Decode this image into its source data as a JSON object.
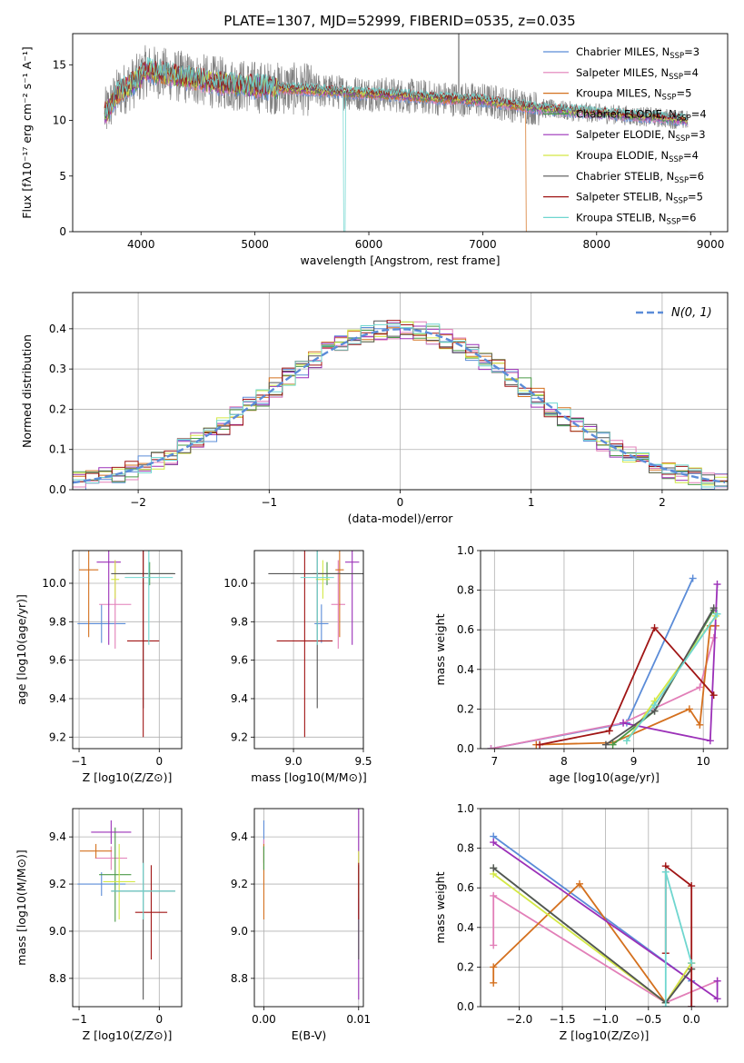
{
  "figure_title": "PLATE=1307, MJD=52999, FIBERID=0535, z=0.035",
  "colors": {
    "series": [
      "#5b8cd8",
      "#e27fb8",
      "#d4701e",
      "#4b9a48",
      "#9b30b8",
      "#d4e845",
      "#555555",
      "#a01515",
      "#6fd6cf"
    ]
  },
  "series_labels": [
    {
      "base": "Chabrier MILES, N",
      "sub": "SSP",
      "tail": "=3"
    },
    {
      "base": "Salpeter MILES, N",
      "sub": "SSP",
      "tail": "=4"
    },
    {
      "base": "Kroupa MILES, N",
      "sub": "SSP",
      "tail": "=5"
    },
    {
      "base": "Chabrier ELODIE, N",
      "sub": "SSP",
      "tail": "=4"
    },
    {
      "base": "Salpeter ELODIE, N",
      "sub": "SSP",
      "tail": "=3"
    },
    {
      "base": "Kroupa ELODIE, N",
      "sub": "SSP",
      "tail": "=4"
    },
    {
      "base": "Chabrier STELIB, N",
      "sub": "SSP",
      "tail": "=6"
    },
    {
      "base": "Salpeter STELIB, N",
      "sub": "SSP",
      "tail": "=5"
    },
    {
      "base": "Kroupa STELIB, N",
      "sub": "SSP",
      "tail": "=6"
    }
  ],
  "chart_data": [
    {
      "id": "spectrum",
      "type": "line",
      "xlabel": "wavelength [Angstrom, rest frame]",
      "ylabel": "Flux [fλ10⁻¹⁷ erg cm⁻² s⁻¹ A⁻¹]",
      "xlim": [
        3400,
        9150
      ],
      "ylim": [
        0,
        17.8
      ],
      "xticks": [
        4000,
        5000,
        6000,
        7000,
        8000,
        9000
      ],
      "yticks": [
        0,
        5,
        10,
        15
      ],
      "data_color": "#808080",
      "data_x_range": [
        3680,
        8800
      ],
      "legend_position": "top-right",
      "model_anchor_x": [
        3680,
        3800,
        3950,
        4050,
        4300,
        4600,
        5000,
        5400,
        5800,
        6200,
        6600,
        7000,
        7400,
        7800,
        8200,
        8600,
        8800
      ],
      "model_anchor_y": [
        10.5,
        12.5,
        13.5,
        14.5,
        14.0,
        13.5,
        13.0,
        12.8,
        12.5,
        12.3,
        12.0,
        11.8,
        11.2,
        10.8,
        10.5,
        10.2,
        10.0
      ]
    },
    {
      "id": "residual_histogram",
      "type": "histogram",
      "xlabel": "(data-model)/error",
      "ylabel": "Normed distribution",
      "xlim": [
        -2.5,
        2.5
      ],
      "ylim": [
        0,
        0.49
      ],
      "xticks": [
        -2,
        -1,
        0,
        1,
        2
      ],
      "yticks": [
        0.0,
        0.1,
        0.2,
        0.3,
        0.4
      ],
      "grid": true,
      "legend_position": "top-right",
      "reference_curve": {
        "name": "N(0, 1)",
        "mean": 0,
        "sigma": 1
      },
      "bin_width": 0.1
    },
    {
      "id": "age_vs_Z",
      "type": "errorbar",
      "xlabel": "Z [log10(Z/Z⊙)]",
      "ylabel": "age [log10(age/yr)]",
      "xlim": [
        -1.08,
        0.28
      ],
      "ylim": [
        9.14,
        10.17
      ],
      "xticks": [
        -1,
        0
      ],
      "yticks": [
        9.2,
        9.4,
        9.6,
        9.8,
        10.0
      ],
      "grid": true,
      "points": [
        {
          "x": -0.72,
          "xerr": 0.3,
          "y": 9.79,
          "yerr": 0.1
        },
        {
          "x": -0.55,
          "xerr": 0.2,
          "y": 9.89,
          "yerr": 0.23
        },
        {
          "x": -0.88,
          "xerr": 0.12,
          "y": 10.07,
          "yerr": 0.35
        },
        {
          "x": -0.12,
          "xerr": 0.3,
          "y": 10.05,
          "yerr": 0.06
        },
        {
          "x": -0.63,
          "xerr": 0.15,
          "y": 10.11,
          "yerr": 0.43
        },
        {
          "x": -0.55,
          "xerr": 0.05,
          "y": 10.02,
          "yerr": 0.1
        },
        {
          "x": -0.2,
          "xerr": 0.4,
          "y": 10.05,
          "yerr": 0.7
        },
        {
          "x": -0.2,
          "xerr": 0.2,
          "y": 9.7,
          "yerr": 0.5
        },
        {
          "x": -0.13,
          "xerr": 0.3,
          "y": 10.03,
          "yerr": 0.35
        }
      ]
    },
    {
      "id": "age_vs_mass",
      "type": "errorbar",
      "xlabel": "mass [log10(M/M⊙)]",
      "ylabel": "",
      "xlim": [
        8.72,
        9.5
      ],
      "ylim": [
        9.14,
        10.17
      ],
      "xticks": [
        9.0,
        9.5
      ],
      "yticks": [
        9.2,
        9.4,
        9.6,
        9.8,
        10.0
      ],
      "grid": true,
      "points": [
        {
          "x": 9.2,
          "xerr": 0.05,
          "y": 9.79,
          "yerr": 0.1
        },
        {
          "x": 9.32,
          "xerr": 0.05,
          "y": 9.89,
          "yerr": 0.23
        },
        {
          "x": 9.33,
          "xerr": 0.03,
          "y": 10.07,
          "yerr": 0.35
        },
        {
          "x": 9.24,
          "xerr": 0.1,
          "y": 10.05,
          "yerr": 0.06
        },
        {
          "x": 9.42,
          "xerr": 0.05,
          "y": 10.11,
          "yerr": 0.43
        },
        {
          "x": 9.21,
          "xerr": 0.05,
          "y": 10.02,
          "yerr": 0.1
        },
        {
          "x": 9.17,
          "xerr": 0.35,
          "y": 10.05,
          "yerr": 0.7
        },
        {
          "x": 9.08,
          "xerr": 0.2,
          "y": 9.7,
          "yerr": 0.5
        },
        {
          "x": 9.17,
          "xerr": 0.12,
          "y": 10.03,
          "yerr": 0.35
        }
      ]
    },
    {
      "id": "mass_weight_vs_age",
      "type": "line",
      "xlabel": "age [log10(age/yr)]",
      "ylabel": "mass weight",
      "xlim": [
        6.8,
        10.35
      ],
      "ylim": [
        0,
        1.0
      ],
      "xticks": [
        7,
        8,
        9,
        10
      ],
      "yticks": [
        0.0,
        0.2,
        0.4,
        0.6,
        0.8,
        1.0
      ],
      "grid": true,
      "series": [
        {
          "x": [
            6.95,
            8.9,
            9.85
          ],
          "y": [
            0.0,
            0.13,
            0.86
          ]
        },
        {
          "x": [
            6.95,
            8.85,
            9.95,
            10.15
          ],
          "y": [
            0.0,
            0.13,
            0.31,
            0.56
          ]
        },
        {
          "x": [
            7.6,
            8.7,
            9.8,
            9.95,
            10.1,
            10.18
          ],
          "y": [
            0.02,
            0.03,
            0.2,
            0.12,
            0.62,
            0.62
          ]
        },
        {
          "x": [
            8.7,
            9.3,
            10.15
          ],
          "y": [
            0.02,
            0.19,
            0.7
          ]
        },
        {
          "x": [
            8.85,
            10.1,
            10.2
          ],
          "y": [
            0.13,
            0.04,
            0.83
          ]
        },
        {
          "x": [
            8.9,
            9.3,
            10.18
          ],
          "y": [
            0.04,
            0.24,
            0.67
          ]
        },
        {
          "x": [
            8.6,
            9.3,
            10.15
          ],
          "y": [
            0.02,
            0.19,
            0.71
          ]
        },
        {
          "x": [
            7.65,
            8.65,
            9.3,
            10.15
          ],
          "y": [
            0.02,
            0.09,
            0.61,
            0.27
          ]
        },
        {
          "x": [
            8.9,
            9.3,
            10.2
          ],
          "y": [
            0.04,
            0.22,
            0.68
          ]
        }
      ]
    },
    {
      "id": "mass_vs_Z",
      "type": "errorbar",
      "xlabel": "Z [log10(Z/Z⊙)]",
      "ylabel": "mass [log10(M/M⊙)]",
      "xlim": [
        -1.08,
        0.28
      ],
      "ylim": [
        8.68,
        9.52
      ],
      "xticks": [
        -1,
        0
      ],
      "yticks": [
        8.8,
        9.0,
        9.2,
        9.4
      ],
      "grid": true,
      "points": [
        {
          "x": -0.72,
          "xerr": 0.3,
          "y": 9.2,
          "yerr": 0.05
        },
        {
          "x": -0.6,
          "xerr": 0.2,
          "y": 9.31,
          "yerr": 0.05
        },
        {
          "x": -0.79,
          "xerr": 0.2,
          "y": 9.34,
          "yerr": 0.03
        },
        {
          "x": -0.55,
          "xerr": 0.2,
          "y": 9.24,
          "yerr": 0.2
        },
        {
          "x": -0.6,
          "xerr": 0.25,
          "y": 9.42,
          "yerr": 0.05
        },
        {
          "x": -0.5,
          "xerr": 0.2,
          "y": 9.21,
          "yerr": 0.16
        },
        {
          "x": -0.2,
          "xerr": 0.4,
          "y": 9.17,
          "yerr": 0.46
        },
        {
          "x": -0.1,
          "xerr": 0.2,
          "y": 9.08,
          "yerr": 0.2
        },
        {
          "x": -0.2,
          "xerr": 0.4,
          "y": 9.17,
          "yerr": 0.12
        }
      ]
    },
    {
      "id": "mass_vs_EBV",
      "type": "errorbar",
      "xlabel": "E(B-V)",
      "ylabel": "",
      "xlim": [
        -0.001,
        0.0105
      ],
      "ylim": [
        8.68,
        9.52
      ],
      "xticks": [
        0.0,
        0.01
      ],
      "xtick_labels": [
        "0.00",
        "0.01"
      ],
      "yticks": [
        8.8,
        9.0,
        9.2,
        9.4
      ],
      "grid": true,
      "points": [
        {
          "x": 0.0,
          "xerr": 0,
          "y": 9.42,
          "yerr": 0.05
        },
        {
          "x": 0.0,
          "xerr": 0,
          "y": 9.34,
          "yerr": 0.05
        },
        {
          "x": 0.0,
          "xerr": 0,
          "y": 9.21,
          "yerr": 0.16
        },
        {
          "x": 0.0,
          "xerr": 0,
          "y": 9.31,
          "yerr": 0.05
        },
        {
          "x": 0.01,
          "xerr": 0,
          "y": 9.17,
          "yerr": 0.46
        },
        {
          "x": 0.01,
          "xerr": 0,
          "y": 9.24,
          "yerr": 0.1
        },
        {
          "x": 0.01,
          "xerr": 0,
          "y": 9.08,
          "yerr": 0.2
        },
        {
          "x": 0.01,
          "xerr": 0,
          "y": 9.17,
          "yerr": 0.12
        }
      ]
    },
    {
      "id": "mass_weight_vs_Z",
      "type": "line",
      "xlabel": "Z [log10(Z/Z⊙)]",
      "ylabel": "mass weight",
      "xlim": [
        -2.45,
        0.42
      ],
      "ylim": [
        0,
        1.0
      ],
      "xticks": [
        -2.0,
        -1.5,
        -1.0,
        -0.5,
        0.0
      ],
      "xtick_labels": [
        "−2.0",
        "−1.5",
        "−1.0",
        "−0.5",
        "0.0"
      ],
      "yticks": [
        0.0,
        0.2,
        0.4,
        0.6,
        0.8,
        1.0
      ],
      "grid": true,
      "series": [
        {
          "x": [
            -2.3,
            0.0,
            0.0
          ],
          "y": [
            0.86,
            0.13,
            0.0
          ]
        },
        {
          "x": [
            -2.3,
            -2.3,
            -0.3,
            0.3
          ],
          "y": [
            0.31,
            0.56,
            0.02,
            0.13
          ]
        },
        {
          "x": [
            -2.3,
            -2.3,
            -1.3,
            -0.3,
            0.0
          ],
          "y": [
            0.12,
            0.2,
            0.62,
            0.02,
            0.22
          ]
        },
        {
          "x": [
            -2.3,
            -0.3,
            0.0
          ],
          "y": [
            0.7,
            0.02,
            0.19
          ]
        },
        {
          "x": [
            -2.3,
            0.3,
            0.3
          ],
          "y": [
            0.83,
            0.04,
            0.13
          ]
        },
        {
          "x": [
            -2.3,
            -0.3,
            0.0
          ],
          "y": [
            0.67,
            0.02,
            0.22
          ]
        },
        {
          "x": [
            -2.3,
            -0.3,
            0.0
          ],
          "y": [
            0.7,
            0.02,
            0.19
          ]
        },
        {
          "x": [
            -0.3,
            -0.3,
            0.0,
            0.0
          ],
          "y": [
            0.27,
            0.71,
            0.61,
            0.0
          ]
        },
        {
          "x": [
            -0.3,
            -0.3,
            0.0
          ],
          "y": [
            0.0,
            0.68,
            0.22
          ]
        }
      ]
    }
  ]
}
